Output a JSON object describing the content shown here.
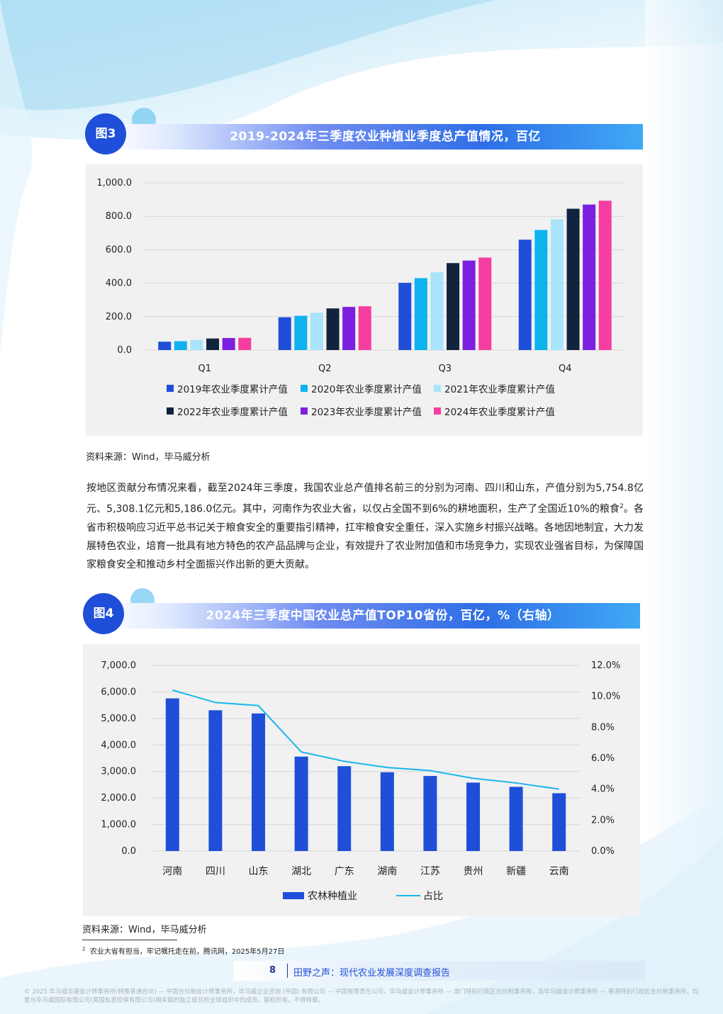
{
  "figure3": {
    "badge": "图3",
    "title": "2019-2024年三季度农业种植业季度总产值情况，百亿",
    "source": "资料来源：Wind，毕马威分析",
    "chart_data": {
      "type": "bar",
      "categories": [
        "Q1",
        "Q2",
        "Q3",
        "Q4"
      ],
      "series": [
        {
          "name": "2019年农业季度累计产值",
          "color": "#1f4fd8",
          "values": [
            50,
            196,
            402,
            660
          ]
        },
        {
          "name": "2020年农业季度累计产值",
          "color": "#0db2ee",
          "values": [
            53,
            205,
            430,
            718
          ]
        },
        {
          "name": "2021年农业季度累计产值",
          "color": "#a8e4fb",
          "values": [
            61,
            223,
            465,
            782
          ]
        },
        {
          "name": "2022年农业季度累计产值",
          "color": "#12233f",
          "values": [
            69,
            249,
            520,
            845
          ]
        },
        {
          "name": "2023年农业季度累计产值",
          "color": "#7b1fe0",
          "values": [
            72,
            258,
            535,
            870
          ]
        },
        {
          "name": "2024年农业季度累计产值",
          "color": "#f63da0",
          "values": [
            73,
            262,
            553,
            893
          ]
        }
      ],
      "y_ticks": [
        "0.0",
        "200.0",
        "400.0",
        "600.0",
        "800.0",
        "1,000.0"
      ],
      "ylim": [
        0,
        1000
      ],
      "legend_position": "bottom"
    }
  },
  "paragraph": {
    "text_before_sup": "按地区贡献分布情况来看，截至2024年三季度，我国农业总产值排名前三的分别为河南、四川和山东，产值分别为5,754.8亿元、5,308.1亿元和5,186.0亿元。其中，河南作为农业大省，以仅占全国不到6%的耕地面积，生产了全国近10%的粮食",
    "sup": "2",
    "text_after_sup": "。各省市积极响应习近平总书记关于粮食安全的重要指引精神，扛牢粮食安全重任，深入实施乡村振兴战略。各地因地制宜，大力发展特色农业，培育一批具有地方特色的农产品品牌与企业，有效提升了农业附加值和市场竞争力，实现农业强省目标，为保障国家粮食安全和推动乡村全面振兴作出新的更大贡献。"
  },
  "figure4": {
    "badge": "图4",
    "title": "2024年三季度中国农业总产值TOP10省份，百亿，%（右轴）",
    "source": "资料来源：Wind，毕马威分析",
    "chart_data": {
      "type": "bar",
      "categories": [
        "河南",
        "四川",
        "山东",
        "湖北",
        "广东",
        "湖南",
        "江苏",
        "贵州",
        "新疆",
        "云南"
      ],
      "series": [
        {
          "name": "农林种植业",
          "kind": "bar",
          "axis": "left",
          "color": "#1f4fd8",
          "values": [
            5754.8,
            5308.1,
            5186.0,
            3560,
            3200,
            2970,
            2830,
            2580,
            2420,
            2180
          ]
        },
        {
          "name": "占比",
          "kind": "line",
          "axis": "right",
          "color": "#19b5ef",
          "values": [
            10.4,
            9.6,
            9.4,
            6.4,
            5.8,
            5.4,
            5.2,
            4.7,
            4.4,
            4.0
          ]
        }
      ],
      "y_ticks": [
        "0.0",
        "1,000.0",
        "2,000.0",
        "3,000.0",
        "4,000.0",
        "5,000.0",
        "6,000.0",
        "7,000.0"
      ],
      "ylim": [
        0,
        7000
      ],
      "y2_ticks": [
        "0.0%",
        "2.0%",
        "4.0%",
        "6.0%",
        "8.0%",
        "10.0%",
        "12.0%"
      ],
      "y2lim": [
        0,
        12
      ],
      "legend_position": "bottom"
    }
  },
  "footnote": {
    "sup": "2",
    "text": "农业大省有担当，牢记嘱托走在前，腾讯网，2025年5月27日"
  },
  "footer": {
    "page_number": "8",
    "report_title": "田野之声：现代农业发展深度调查报告",
    "copyright": "© 2025 毕马威华振会计师事务所(特殊普通合伙) — 中国合伙制会计师事务所，毕马威企业咨询 (中国) 有限公司 — 中国有限责任公司，毕马威会计师事务所 — 澳门特别行政区合伙制事务所，及毕马威会计师事务所 — 香港特别行政区合伙制事务所，均是与毕马威国际有限公司(英国私营担保有限公司)相关联的独立成员所全球组织中的成员。版权所有，不得转载。"
  }
}
